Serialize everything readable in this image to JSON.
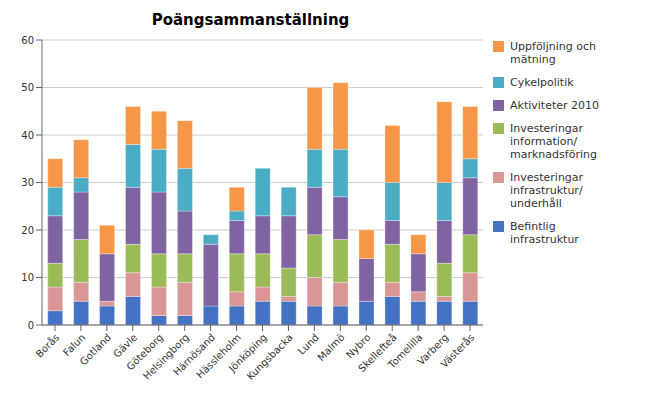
{
  "chart_data": {
    "type": "bar",
    "title": "Poängsammanställning",
    "categories": [
      "Borås",
      "Falun",
      "Gotland",
      "Gävle",
      "Göteborg",
      "Helsingborg",
      "Härnösand",
      "Hässleholm",
      "Jönköping",
      "Kungsbacka",
      "Lund",
      "Malmö",
      "Nybro",
      "Skellefteå",
      "Tomelilla",
      "Varberg",
      "Västerås"
    ],
    "series": [
      {
        "name": "Befintlig\ninfrastruktur",
        "color": "#4472C4",
        "values": [
          3,
          5,
          4,
          6,
          2,
          2,
          4,
          4,
          5,
          5,
          4,
          4,
          5,
          6,
          5,
          5,
          5
        ]
      },
      {
        "name": "Investeringar\ninfrastruktur/\nunderhåll",
        "color": "#DA9694",
        "values": [
          5,
          4,
          1,
          5,
          6,
          7,
          0,
          3,
          3,
          1,
          6,
          5,
          0,
          3,
          2,
          1,
          6
        ]
      },
      {
        "name": "Investeringar\ninformation/\nmarknadsföring",
        "color": "#9BBB59",
        "values": [
          5,
          9,
          0,
          6,
          7,
          6,
          0,
          8,
          7,
          6,
          9,
          9,
          0,
          8,
          0,
          7,
          8
        ]
      },
      {
        "name": "Aktiviteter 2010",
        "color": "#8064A2",
        "values": [
          10,
          10,
          10,
          12,
          13,
          9,
          13,
          7,
          8,
          11,
          10,
          9,
          9,
          5,
          8,
          9,
          12
        ]
      },
      {
        "name": "Cykelpolitik",
        "color": "#4BACC6",
        "values": [
          6,
          3,
          0,
          9,
          9,
          9,
          2,
          2,
          10,
          6,
          8,
          10,
          0,
          8,
          0,
          8,
          4
        ]
      },
      {
        "name": "Uppföljning och\nmätning",
        "color": "#F79646",
        "values": [
          6,
          8,
          6,
          8,
          8,
          10,
          0,
          5,
          0,
          0,
          13,
          14,
          6,
          12,
          4,
          17,
          11
        ]
      }
    ],
    "stacked": true,
    "ylim": [
      0,
      60
    ],
    "yticks": [
      0,
      10,
      20,
      30,
      40,
      50,
      60
    ],
    "grid": true,
    "legend": "upper right"
  }
}
